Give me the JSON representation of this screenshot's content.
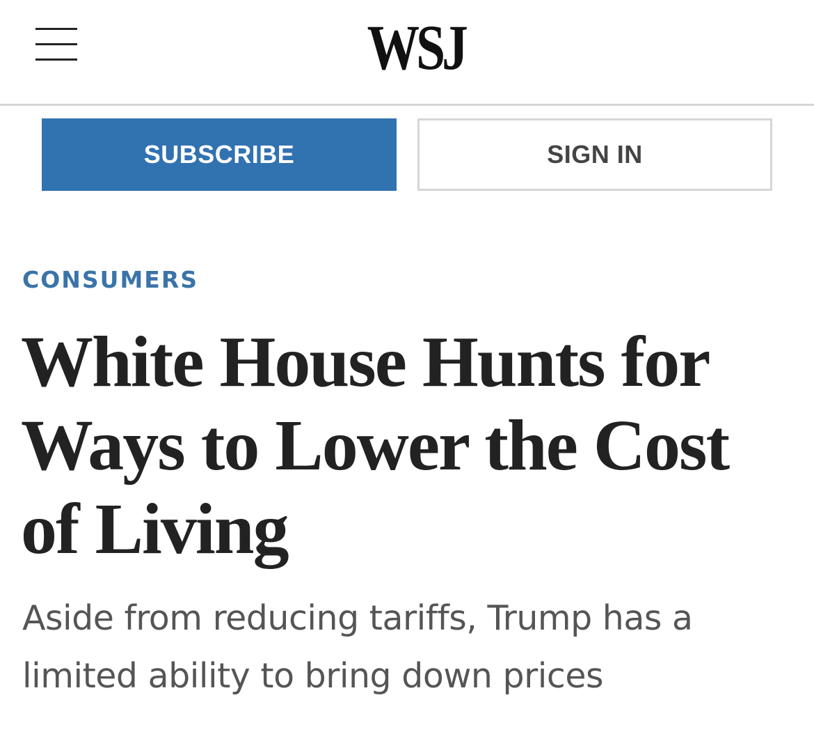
{
  "header": {
    "menu_icon": "hamburger-menu-icon",
    "logo_text": "WSJ"
  },
  "actions": {
    "subscribe_label": "SUBSCRIBE",
    "signin_label": "SIGN IN"
  },
  "article": {
    "section": "CONSUMERS",
    "headline": "White House Hunts for Ways to Lower the Cost of Living",
    "dek": "Aside from reducing tariffs, Trump has a limited ability to bring down prices"
  },
  "colors": {
    "accent": "#3172b1",
    "section_label": "#3a74a8",
    "headline": "#222222",
    "dek": "#555555",
    "divider": "#d6d6d6"
  }
}
